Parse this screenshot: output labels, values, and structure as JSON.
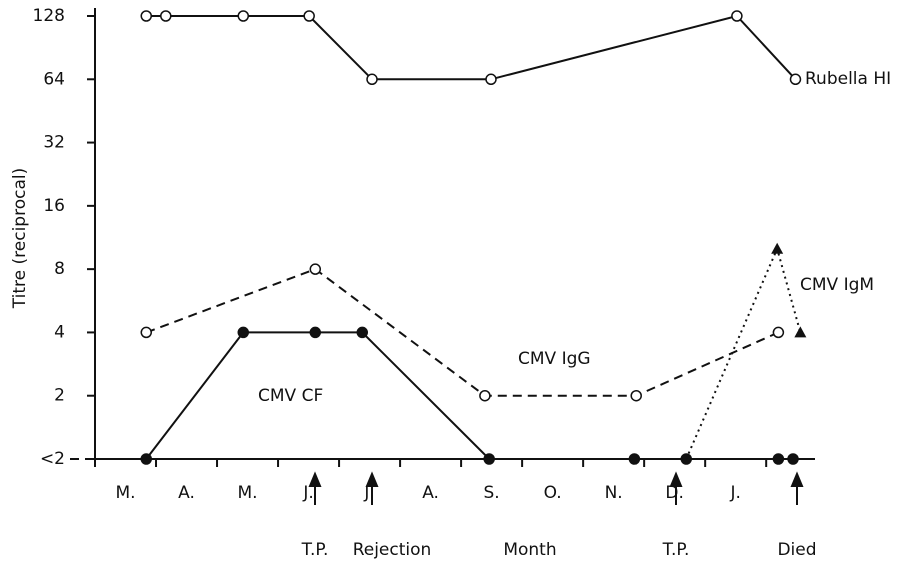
{
  "chart_data": {
    "type": "line",
    "y_label": "Titre (reciprocal)",
    "x_label": "Month",
    "log_scale_y": true,
    "log_base": 2,
    "xlim": [
      0,
      11.8
    ],
    "ylim": [
      1,
      128
    ],
    "xticks": [
      {
        "value": 0.5,
        "label": "M."
      },
      {
        "value": 1.5,
        "label": "A."
      },
      {
        "value": 2.5,
        "label": "M."
      },
      {
        "value": 3.5,
        "label": "J."
      },
      {
        "value": 4.5,
        "label": "J."
      },
      {
        "value": 5.5,
        "label": "A."
      },
      {
        "value": 6.5,
        "label": "S."
      },
      {
        "value": 7.5,
        "label": "O."
      },
      {
        "value": 8.5,
        "label": "N."
      },
      {
        "value": 9.5,
        "label": "D."
      },
      {
        "value": 10.5,
        "label": "J."
      }
    ],
    "xminorticks": [
      0,
      1,
      2,
      3,
      4,
      5,
      6,
      7,
      8,
      9,
      10,
      11
    ],
    "yticks": [
      {
        "value": 1,
        "label": "<2"
      },
      2,
      4,
      8,
      16,
      32,
      64,
      128
    ],
    "annotations": [
      "T.P.",
      "Rejection",
      "T.P.",
      "Died"
    ],
    "series": [
      {
        "name": "Rubella HI",
        "color": "#111",
        "dash": "solid",
        "marker": "open-circle",
        "x": [
          0.84,
          1.16,
          2.43,
          3.51,
          4.54,
          6.49,
          10.52,
          11.48
        ],
        "values": [
          128,
          128,
          128,
          128,
          64,
          64,
          128,
          64
        ]
      },
      {
        "name": "CMV IgG",
        "color": "#111",
        "dash": "dashed",
        "marker": "open-circle",
        "x": [
          0.84,
          3.61,
          6.39,
          8.87,
          11.2
        ],
        "values": [
          4,
          8,
          2,
          2,
          4
        ]
      },
      {
        "name": "CMV CF",
        "color": "#111",
        "dash": "solid",
        "marker": "filled-circle",
        "x": [
          0.84,
          2.43,
          3.61,
          4.38,
          6.46,
          8.84,
          9.69,
          11.2,
          11.44
        ],
        "values": [
          1,
          4,
          4,
          4,
          1,
          1,
          1,
          1,
          1
        ]
      },
      {
        "name": "CMV IgM",
        "color": "#111",
        "dash": "dotted",
        "marker": "filled-triangle",
        "x": [
          9.69,
          11.18,
          11.56
        ],
        "values": [
          1,
          10,
          4
        ]
      }
    ]
  }
}
